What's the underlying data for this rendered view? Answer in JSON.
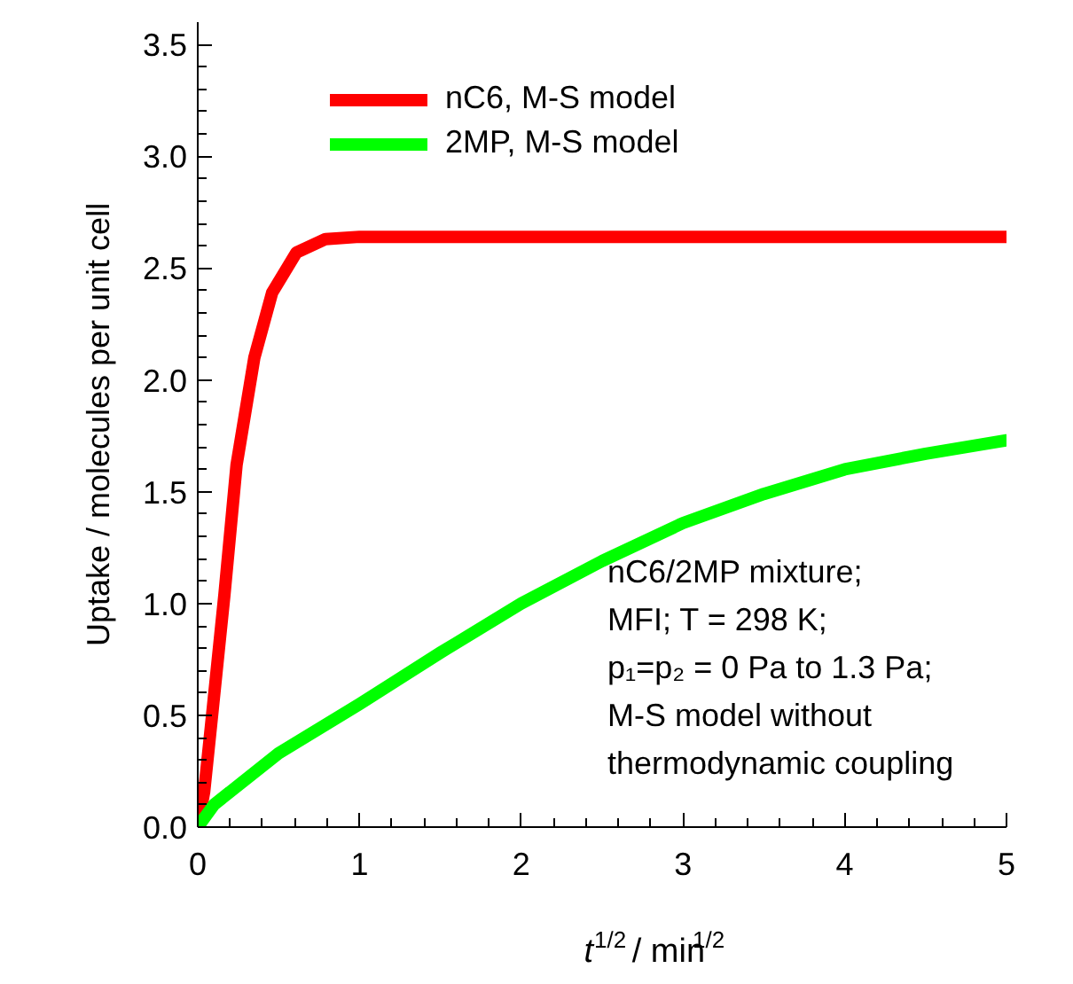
{
  "chart_data": {
    "type": "line",
    "xlabel": "t$^{1/2}$ / min$^{1/2}$",
    "ylabel": "Uptake / molecules per unit cell",
    "xlim": [
      0,
      5
    ],
    "ylim": [
      0,
      3.6
    ],
    "xticks": [
      0,
      {
        "value": 0.2,
        "label": null
      },
      {
        "value": 0.4,
        "label": null
      },
      {
        "value": 0.6,
        "label": null
      },
      {
        "value": 0.8,
        "label": null
      },
      1,
      {
        "value": 1.2,
        "label": null
      },
      {
        "value": 1.4,
        "label": null
      },
      {
        "value": 1.6,
        "label": null
      },
      {
        "value": 1.8,
        "label": null
      },
      2,
      {
        "value": 2.2,
        "label": null
      },
      {
        "value": 2.4,
        "label": null
      },
      {
        "value": 2.6,
        "label": null
      },
      {
        "value": 2.8,
        "label": null
      },
      3,
      {
        "value": 3.2,
        "label": null
      },
      {
        "value": 3.4,
        "label": null
      },
      {
        "value": 3.6,
        "label": null
      },
      {
        "value": 3.8,
        "label": null
      },
      4,
      {
        "value": 4.2,
        "label": null
      },
      {
        "value": 4.4,
        "label": null
      },
      {
        "value": 4.6,
        "label": null
      },
      {
        "value": 4.8,
        "label": null
      },
      5
    ],
    "yticks": [
      {
        "value": 0,
        "label": "0.0"
      },
      {
        "value": 0.1,
        "label": null
      },
      {
        "value": 0.2,
        "label": null
      },
      {
        "value": 0.3,
        "label": null
      },
      {
        "value": 0.4,
        "label": null
      },
      0.5,
      {
        "value": 0.6,
        "label": null
      },
      {
        "value": 0.7,
        "label": null
      },
      {
        "value": 0.8,
        "label": null
      },
      {
        "value": 0.9,
        "label": null
      },
      {
        "value": 1,
        "label": "1.0"
      },
      {
        "value": 1.1,
        "label": null
      },
      {
        "value": 1.2,
        "label": null
      },
      {
        "value": 1.3,
        "label": null
      },
      {
        "value": 1.4,
        "label": null
      },
      1.5,
      {
        "value": 1.6,
        "label": null
      },
      {
        "value": 1.7,
        "label": null
      },
      {
        "value": 1.8,
        "label": null
      },
      {
        "value": 1.9,
        "label": null
      },
      {
        "value": 2,
        "label": "2.0"
      },
      {
        "value": 2.1,
        "label": null
      },
      {
        "value": 2.2,
        "label": null
      },
      {
        "value": 2.3,
        "label": null
      },
      {
        "value": 2.4,
        "label": null
      },
      2.5,
      {
        "value": 2.6,
        "label": null
      },
      {
        "value": 2.7,
        "label": null
      },
      {
        "value": 2.8,
        "label": null
      },
      {
        "value": 2.9,
        "label": null
      },
      {
        "value": 3,
        "label": "3.0"
      },
      {
        "value": 3.1,
        "label": null
      },
      {
        "value": 3.2,
        "label": null
      },
      {
        "value": 3.3,
        "label": null
      },
      {
        "value": 3.4,
        "label": null
      },
      3.5
    ],
    "grid": false,
    "legend": "top left",
    "marker": "none",
    "line_style": "solid",
    "series": [
      {
        "name": "nC6, M-S model",
        "color": "#ff0000",
        "x": [
          0,
          0.04,
          0.09,
          0.165,
          0.24,
          0.35,
          0.46,
          0.61,
          0.79,
          1,
          2,
          3,
          4,
          5
        ],
        "values": [
          0,
          0.16,
          0.51,
          1.04,
          1.62,
          2.1,
          2.39,
          2.57,
          2.63,
          2.64,
          2.64,
          2.64,
          2.64,
          2.64
        ]
      },
      {
        "name": "2MP, M-S model",
        "color": "#00ff00",
        "x": [
          0,
          0.1,
          0.5,
          1,
          1.5,
          2,
          2.5,
          3,
          3.5,
          4,
          4.5,
          5
        ],
        "values": [
          0,
          0.1,
          0.33,
          0.55,
          0.78,
          1.0,
          1.19,
          1.36,
          1.49,
          1.6,
          1.67,
          1.73
        ]
      }
    ],
    "annotations": [
      "nC6/2MP mixture;",
      "MFI; T = 298 K;",
      "p₁=p₂ = 0 Pa to 1.3 Pa;",
      "M-S model without",
      "thermodynamic coupling"
    ]
  }
}
